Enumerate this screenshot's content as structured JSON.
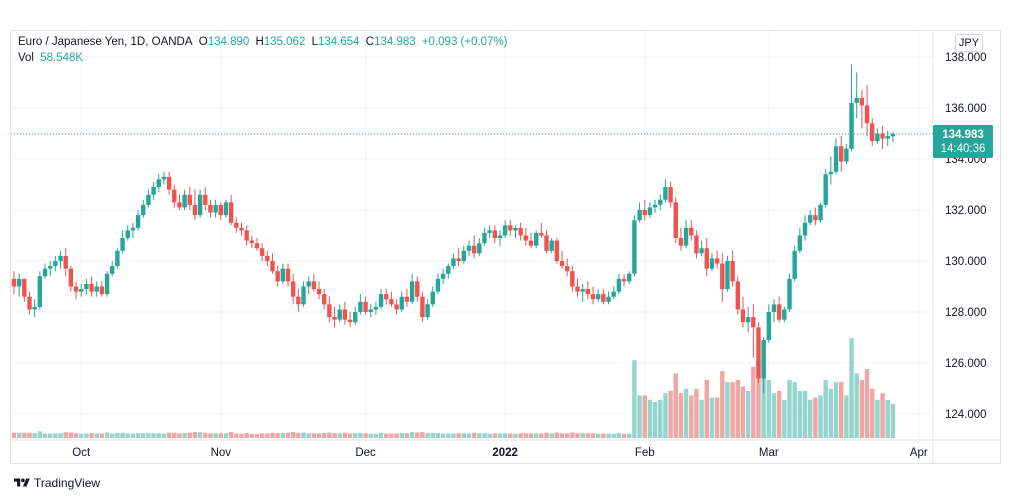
{
  "legend": {
    "symbol": "Euro / Japanese Yen, 1D, OANDA",
    "open_label": "O",
    "open": "134.890",
    "high_label": "H",
    "high": "135.062",
    "low_label": "L",
    "low": "134.654",
    "close_label": "C",
    "close": "134.983",
    "change": "+0.093 (+0.07%)",
    "vol_label": "Vol",
    "vol": "58.548K"
  },
  "currency_button": "JPY",
  "price_tag": {
    "price": "134.983",
    "countdown": "14:40:36"
  },
  "footer": {
    "brand": "TradingView"
  },
  "colors": {
    "up": "#26a69a",
    "down": "#ef5350",
    "up_volume": "#94d5cd",
    "down_volume": "#f0a6a4",
    "grid": "#f0f3fa"
  },
  "chart_data": {
    "type": "candlestick",
    "title": "Euro / Japanese Yen, 1D, OANDA",
    "ylim": [
      123,
      139
    ],
    "y_ticks": [
      "124.000",
      "126.000",
      "128.000",
      "130.000",
      "132.000",
      "134.000",
      "136.000",
      "138.000"
    ],
    "y_tick_values": [
      124,
      126,
      128,
      130,
      132,
      134,
      136,
      138
    ],
    "x_ticks": [
      {
        "label": "Oct",
        "index": 13
      },
      {
        "label": "Nov",
        "index": 40
      },
      {
        "label": "Dec",
        "index": 68
      },
      {
        "label": "2022",
        "index": 95
      },
      {
        "label": "Feb",
        "index": 122
      },
      {
        "label": "Mar",
        "index": 146
      },
      {
        "label": "Apr",
        "index": 175
      }
    ],
    "last_price": 134.983,
    "ohlc": [
      [
        129.3,
        129.6,
        128.7,
        129.0
      ],
      [
        129.0,
        129.5,
        128.6,
        129.3
      ],
      [
        129.3,
        129.3,
        128.4,
        128.6
      ],
      [
        128.6,
        128.8,
        127.9,
        128.1
      ],
      [
        128.1,
        128.5,
        127.8,
        128.2
      ],
      [
        128.2,
        129.6,
        128.1,
        129.4
      ],
      [
        129.4,
        129.9,
        129.3,
        129.7
      ],
      [
        129.7,
        130.0,
        129.4,
        129.8
      ],
      [
        129.8,
        130.2,
        129.6,
        130.0
      ],
      [
        130.0,
        130.4,
        129.7,
        130.2
      ],
      [
        130.2,
        130.5,
        129.4,
        129.7
      ],
      [
        129.7,
        129.8,
        128.8,
        129.0
      ],
      [
        129.0,
        129.2,
        128.5,
        128.8
      ],
      [
        128.8,
        129.1,
        128.6,
        128.9
      ],
      [
        128.9,
        129.3,
        128.7,
        129.1
      ],
      [
        129.1,
        129.4,
        128.6,
        128.8
      ],
      [
        128.8,
        129.2,
        128.6,
        129.0
      ],
      [
        129.0,
        129.2,
        128.6,
        128.7
      ],
      [
        128.7,
        129.6,
        128.6,
        129.5
      ],
      [
        129.5,
        130.0,
        129.4,
        129.8
      ],
      [
        129.8,
        130.5,
        129.7,
        130.4
      ],
      [
        130.4,
        131.2,
        130.3,
        130.9
      ],
      [
        130.9,
        131.4,
        130.8,
        131.2
      ],
      [
        131.2,
        131.5,
        130.9,
        131.3
      ],
      [
        131.3,
        132.0,
        131.2,
        131.8
      ],
      [
        131.8,
        132.4,
        131.7,
        132.2
      ],
      [
        132.2,
        132.8,
        132.1,
        132.6
      ],
      [
        132.6,
        133.1,
        132.4,
        132.9
      ],
      [
        132.9,
        133.4,
        132.7,
        133.2
      ],
      [
        133.2,
        133.5,
        133.0,
        133.3
      ],
      [
        133.3,
        133.5,
        132.6,
        132.8
      ],
      [
        132.8,
        133.0,
        132.1,
        132.3
      ],
      [
        132.3,
        132.6,
        132.0,
        132.1
      ],
      [
        132.1,
        132.8,
        132.0,
        132.6
      ],
      [
        132.6,
        132.9,
        132.0,
        132.2
      ],
      [
        132.2,
        132.8,
        131.6,
        131.8
      ],
      [
        131.8,
        132.8,
        131.7,
        132.6
      ],
      [
        132.6,
        132.9,
        132.0,
        132.2
      ],
      [
        132.2,
        132.4,
        131.7,
        131.9
      ],
      [
        131.9,
        132.4,
        131.7,
        132.2
      ],
      [
        132.2,
        132.3,
        131.6,
        131.8
      ],
      [
        131.8,
        132.4,
        131.7,
        132.3
      ],
      [
        132.3,
        132.6,
        131.4,
        131.5
      ],
      [
        131.5,
        131.7,
        131.1,
        131.3
      ],
      [
        131.3,
        131.5,
        131.0,
        131.2
      ],
      [
        131.2,
        131.4,
        130.6,
        130.8
      ],
      [
        130.8,
        131.0,
        130.5,
        130.7
      ],
      [
        130.7,
        130.9,
        130.4,
        130.5
      ],
      [
        130.5,
        130.7,
        130.0,
        130.2
      ],
      [
        130.2,
        130.4,
        129.8,
        130.0
      ],
      [
        130.0,
        130.3,
        129.5,
        129.6
      ],
      [
        129.6,
        129.8,
        129.0,
        129.2
      ],
      [
        129.2,
        129.9,
        129.1,
        129.7
      ],
      [
        129.7,
        129.9,
        129.0,
        129.2
      ],
      [
        129.2,
        129.5,
        128.3,
        128.6
      ],
      [
        128.6,
        128.9,
        128.0,
        128.3
      ],
      [
        128.3,
        129.2,
        128.2,
        129.0
      ],
      [
        129.0,
        129.4,
        128.7,
        129.2
      ],
      [
        129.2,
        129.5,
        128.8,
        128.9
      ],
      [
        128.9,
        129.2,
        128.5,
        128.7
      ],
      [
        128.7,
        128.9,
        128.1,
        128.3
      ],
      [
        128.3,
        128.6,
        127.6,
        127.8
      ],
      [
        127.8,
        128.2,
        127.4,
        127.7
      ],
      [
        127.7,
        128.3,
        127.6,
        128.1
      ],
      [
        128.1,
        128.4,
        127.5,
        127.7
      ],
      [
        127.7,
        128.0,
        127.4,
        127.6
      ],
      [
        127.6,
        128.2,
        127.5,
        128.0
      ],
      [
        128.0,
        128.7,
        127.9,
        128.4
      ],
      [
        128.4,
        128.6,
        127.9,
        128.0
      ],
      [
        128.0,
        128.3,
        127.8,
        128.1
      ],
      [
        128.1,
        128.4,
        127.9,
        128.2
      ],
      [
        128.2,
        128.9,
        128.1,
        128.7
      ],
      [
        128.7,
        128.9,
        128.3,
        128.5
      ],
      [
        128.5,
        128.8,
        128.2,
        128.3
      ],
      [
        128.3,
        128.5,
        127.9,
        128.1
      ],
      [
        128.1,
        128.8,
        128.0,
        128.6
      ],
      [
        128.6,
        128.9,
        128.2,
        128.4
      ],
      [
        128.4,
        129.5,
        128.3,
        129.2
      ],
      [
        129.2,
        129.4,
        128.4,
        128.6
      ],
      [
        128.6,
        128.8,
        127.6,
        127.8
      ],
      [
        127.8,
        128.5,
        127.7,
        128.3
      ],
      [
        128.3,
        129.0,
        128.2,
        128.8
      ],
      [
        128.8,
        129.5,
        128.7,
        129.3
      ],
      [
        129.3,
        129.7,
        129.1,
        129.5
      ],
      [
        129.5,
        129.9,
        129.3,
        129.8
      ],
      [
        129.8,
        130.3,
        129.7,
        130.1
      ],
      [
        130.1,
        130.5,
        129.8,
        130.0
      ],
      [
        130.0,
        130.6,
        129.9,
        130.4
      ],
      [
        130.4,
        130.8,
        130.2,
        130.6
      ],
      [
        130.6,
        131.0,
        130.1,
        130.3
      ],
      [
        130.3,
        130.9,
        130.2,
        130.7
      ],
      [
        130.7,
        131.3,
        130.6,
        131.1
      ],
      [
        131.1,
        131.4,
        130.9,
        131.2
      ],
      [
        131.2,
        131.4,
        130.7,
        130.9
      ],
      [
        130.9,
        131.2,
        130.6,
        131.0
      ],
      [
        131.0,
        131.6,
        130.9,
        131.4
      ],
      [
        131.4,
        131.6,
        131.0,
        131.2
      ],
      [
        131.2,
        131.4,
        130.9,
        131.3
      ],
      [
        131.3,
        131.5,
        130.8,
        131.0
      ],
      [
        131.0,
        131.3,
        130.6,
        130.8
      ],
      [
        130.8,
        131.1,
        130.5,
        130.6
      ],
      [
        130.6,
        131.2,
        130.5,
        131.1
      ],
      [
        131.1,
        131.5,
        130.9,
        131.0
      ],
      [
        131.0,
        131.2,
        130.3,
        130.4
      ],
      [
        130.4,
        130.9,
        130.3,
        130.8
      ],
      [
        130.8,
        130.9,
        129.9,
        130.0
      ],
      [
        130.0,
        130.4,
        129.7,
        129.8
      ],
      [
        129.8,
        130.1,
        129.4,
        129.6
      ],
      [
        129.6,
        129.8,
        128.8,
        129.0
      ],
      [
        129.0,
        129.3,
        128.6,
        128.8
      ],
      [
        128.8,
        129.1,
        128.4,
        128.9
      ],
      [
        128.9,
        129.2,
        128.5,
        128.7
      ],
      [
        128.7,
        129.0,
        128.3,
        128.5
      ],
      [
        128.5,
        128.9,
        128.4,
        128.7
      ],
      [
        128.7,
        128.9,
        128.3,
        128.4
      ],
      [
        128.4,
        128.8,
        128.3,
        128.6
      ],
      [
        128.6,
        129.0,
        128.5,
        128.8
      ],
      [
        128.8,
        129.5,
        128.7,
        129.3
      ],
      [
        129.3,
        129.5,
        129.0,
        129.2
      ],
      [
        129.2,
        129.6,
        129.1,
        129.5
      ],
      [
        129.5,
        131.8,
        129.4,
        131.6
      ],
      [
        131.6,
        132.3,
        131.5,
        132.0
      ],
      [
        132.0,
        132.4,
        131.6,
        131.8
      ],
      [
        131.8,
        132.3,
        131.7,
        132.1
      ],
      [
        132.1,
        132.4,
        131.9,
        132.2
      ],
      [
        132.2,
        132.6,
        132.0,
        132.4
      ],
      [
        132.4,
        133.2,
        132.3,
        132.9
      ],
      [
        132.9,
        133.1,
        132.1,
        132.3
      ],
      [
        132.3,
        132.5,
        130.7,
        130.9
      ],
      [
        130.9,
        131.3,
        130.4,
        130.6
      ],
      [
        130.6,
        131.6,
        130.5,
        131.3
      ],
      [
        131.3,
        131.6,
        130.8,
        131.0
      ],
      [
        131.0,
        131.2,
        130.1,
        130.3
      ],
      [
        130.3,
        130.8,
        130.2,
        130.5
      ],
      [
        130.5,
        130.9,
        129.4,
        129.7
      ],
      [
        129.7,
        130.3,
        129.6,
        130.1
      ],
      [
        130.1,
        130.4,
        129.7,
        129.9
      ],
      [
        129.9,
        130.3,
        128.4,
        128.9
      ],
      [
        128.9,
        130.2,
        128.8,
        130.0
      ],
      [
        130.0,
        130.4,
        129.0,
        129.2
      ],
      [
        129.2,
        129.4,
        127.9,
        128.1
      ],
      [
        128.1,
        128.6,
        127.4,
        127.6
      ],
      [
        127.6,
        128.2,
        127.2,
        127.8
      ],
      [
        127.8,
        128.3,
        126.2,
        127.4
      ],
      [
        127.4,
        127.6,
        125.2,
        125.4
      ],
      [
        125.4,
        127.0,
        124.8,
        126.9
      ],
      [
        126.9,
        128.3,
        126.8,
        128.0
      ],
      [
        128.0,
        128.5,
        127.6,
        128.3
      ],
      [
        128.3,
        128.6,
        127.6,
        127.7
      ],
      [
        127.7,
        128.2,
        127.6,
        128.1
      ],
      [
        128.1,
        129.5,
        128.0,
        129.3
      ],
      [
        129.3,
        130.6,
        129.2,
        130.4
      ],
      [
        130.4,
        131.3,
        130.3,
        131.0
      ],
      [
        131.0,
        131.8,
        130.8,
        131.5
      ],
      [
        131.5,
        132.0,
        131.4,
        131.8
      ],
      [
        131.8,
        132.1,
        131.4,
        131.6
      ],
      [
        131.6,
        132.3,
        131.5,
        132.2
      ],
      [
        132.2,
        133.6,
        132.1,
        133.4
      ],
      [
        133.4,
        134.1,
        133.0,
        133.5
      ],
      [
        133.5,
        134.8,
        133.4,
        134.5
      ],
      [
        134.5,
        134.9,
        133.5,
        133.9
      ],
      [
        133.9,
        134.6,
        133.8,
        134.4
      ],
      [
        134.4,
        137.7,
        134.3,
        136.2
      ],
      [
        136.2,
        137.4,
        135.6,
        136.4
      ],
      [
        136.4,
        136.7,
        135.2,
        136.1
      ],
      [
        136.1,
        136.9,
        134.9,
        135.4
      ],
      [
        135.4,
        135.6,
        134.5,
        134.7
      ],
      [
        134.7,
        135.2,
        134.6,
        135.0
      ],
      [
        135.0,
        135.3,
        134.4,
        134.8
      ],
      [
        134.8,
        135.1,
        134.5,
        134.9
      ],
      [
        134.89,
        135.062,
        134.654,
        134.983
      ]
    ]
  }
}
